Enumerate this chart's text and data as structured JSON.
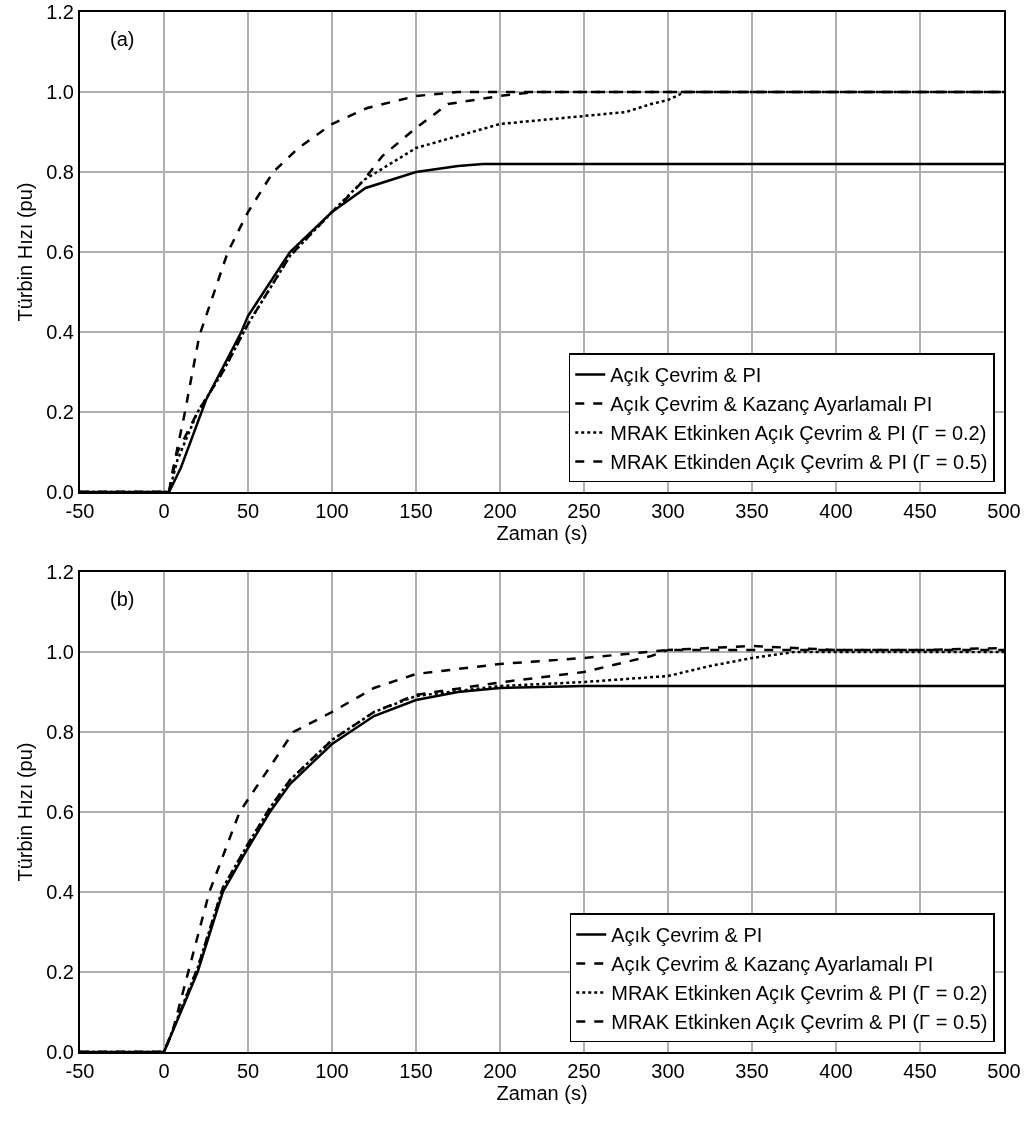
{
  "chart_data": [
    {
      "type": "line",
      "annotations": [
        "(a)"
      ],
      "xlabel": "Zaman (s)",
      "ylabel": "Türbin Hızı (pu)",
      "xlim": [
        -50,
        500
      ],
      "xticks": [
        -50,
        0,
        50,
        100,
        150,
        200,
        250,
        300,
        350,
        400,
        450,
        500
      ],
      "ylim": [
        0,
        1.2
      ],
      "yticks": [
        {
          "value": 0,
          "label": "0.0"
        },
        {
          "value": 0.2,
          "label": "0.2"
        },
        {
          "value": 0.4,
          "label": "0.4"
        },
        {
          "value": 0.6,
          "label": "0.6"
        },
        {
          "value": 0.8,
          "label": "0.8"
        },
        {
          "value": 1,
          "label": "1.0"
        },
        {
          "value": 1.2,
          "label": "1.2"
        }
      ],
      "grid": true,
      "legend": "bottom right",
      "marker": "none",
      "series": [
        {
          "name": "Açık Çevrim & PI",
          "color": "#000000",
          "line_style": "solid",
          "x": [
            -50,
            3,
            10,
            25,
            46,
            50,
            75,
            100,
            120,
            150,
            175,
            190,
            500
          ],
          "values": [
            0,
            0,
            0.06,
            0.23,
            0.4,
            0.44,
            0.6,
            0.7,
            0.76,
            0.8,
            0.815,
            0.82,
            0.82
          ]
        },
        {
          "name": "Açık Çevrim & Kazanç Ayarlamalı PI",
          "color": "#000000",
          "line_style": "dashed",
          "x": [
            -50,
            3,
            5,
            12,
            21,
            38,
            50,
            65,
            80,
            100,
            121,
            150,
            175,
            500
          ],
          "values": [
            0,
            0,
            0.05,
            0.19,
            0.39,
            0.6,
            0.7,
            0.8,
            0.86,
            0.92,
            0.96,
            0.99,
            1,
            1
          ]
        },
        {
          "name": "MRAK Etkinken Açık Çevrim & PI (Γ = 0.2)",
          "color": "#000000",
          "line_style": "dotted",
          "x": [
            -50,
            3,
            8,
            20,
            35,
            50,
            75,
            100,
            119,
            150,
            175,
            200,
            250,
            275,
            290,
            300,
            310,
            500
          ],
          "values": [
            0,
            0,
            0.08,
            0.2,
            0.3,
            0.42,
            0.59,
            0.7,
            0.78,
            0.86,
            0.89,
            0.92,
            0.94,
            0.95,
            0.97,
            0.98,
            1,
            1
          ]
        },
        {
          "name": "MRAK Etkinden Açık Çevrim & PI (Γ = 0.5)",
          "color": "#000000",
          "line_style": "dashed",
          "x": [
            -50,
            3,
            8,
            20,
            35,
            50,
            75,
            100,
            110,
            119,
            130,
            150,
            169,
            200,
            220,
            500
          ],
          "values": [
            0,
            0,
            0.1,
            0.2,
            0.3,
            0.42,
            0.59,
            0.7,
            0.74,
            0.78,
            0.84,
            0.91,
            0.97,
            0.99,
            1,
            1
          ]
        }
      ]
    },
    {
      "type": "line",
      "annotations": [
        "(b)"
      ],
      "xlabel": "Zaman (s)",
      "ylabel": "Türbin Hızı (pu)",
      "xlim": [
        -50,
        500
      ],
      "xticks": [
        -50,
        0,
        50,
        100,
        150,
        200,
        250,
        300,
        350,
        400,
        450,
        500
      ],
      "ylim": [
        0,
        1.2
      ],
      "yticks": [
        {
          "value": 0,
          "label": "0.0"
        },
        {
          "value": 0.2,
          "label": "0.2"
        },
        {
          "value": 0.4,
          "label": "0.4"
        },
        {
          "value": 0.6,
          "label": "0.6"
        },
        {
          "value": 0.8,
          "label": "0.8"
        },
        {
          "value": 1,
          "label": "1.0"
        },
        {
          "value": 1.2,
          "label": "1.2"
        }
      ],
      "grid": true,
      "legend": "bottom right",
      "marker": "none",
      "series": [
        {
          "name": "Açık Çevrim & PI",
          "color": "#000000",
          "line_style": "solid",
          "x": [
            -50,
            0,
            20,
            35,
            50,
            63,
            75,
            100,
            125,
            150,
            175,
            200,
            250,
            500
          ],
          "values": [
            0,
            0,
            0.2,
            0.4,
            0.51,
            0.6,
            0.67,
            0.77,
            0.84,
            0.88,
            0.9,
            0.91,
            0.915,
            0.915
          ]
        },
        {
          "name": "Açık Çevrim & Kazanç Ayarlamalı PI",
          "color": "#000000",
          "line_style": "dashed",
          "x": [
            -50,
            0,
            5,
            27,
            45,
            77,
            100,
            125,
            150,
            200,
            250,
            300,
            500
          ],
          "values": [
            0,
            0,
            0.05,
            0.4,
            0.6,
            0.8,
            0.85,
            0.91,
            0.945,
            0.97,
            0.985,
            1.005,
            1.005
          ]
        },
        {
          "name": "MRAK Etkinken Açık Çevrim & PI (Γ = 0.2)",
          "color": "#000000",
          "line_style": "dotted",
          "x": [
            -50,
            0,
            20,
            35,
            50,
            63,
            75,
            100,
            125,
            150,
            200,
            250,
            300,
            325,
            350,
            375,
            500
          ],
          "values": [
            0,
            0,
            0.21,
            0.41,
            0.52,
            0.61,
            0.68,
            0.78,
            0.85,
            0.89,
            0.915,
            0.925,
            0.94,
            0.965,
            0.985,
            1,
            1
          ]
        },
        {
          "name": "MRAK Etkinken Açık Çevrim & PI (Γ = 0.5)",
          "color": "#000000",
          "line_style": "dashed",
          "x": [
            -50,
            0,
            20,
            35,
            50,
            63,
            75,
            100,
            125,
            150,
            200,
            250,
            290,
            300,
            350,
            400,
            450,
            500
          ],
          "values": [
            0,
            0,
            0.21,
            0.41,
            0.52,
            0.61,
            0.68,
            0.78,
            0.85,
            0.893,
            0.924,
            0.95,
            0.99,
            1.005,
            1.015,
            1.005,
            1.005,
            1.01
          ]
        }
      ]
    }
  ]
}
